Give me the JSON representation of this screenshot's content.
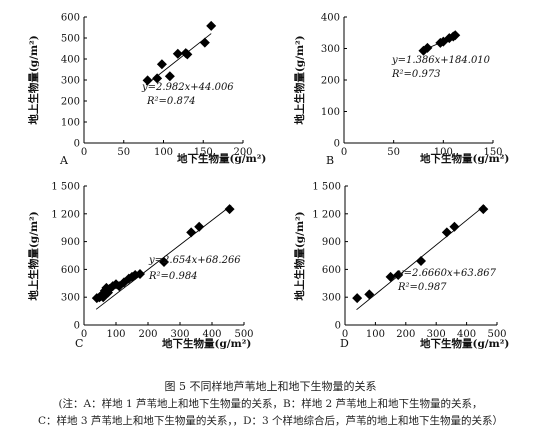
{
  "chart_data": [
    {
      "type": "scatter",
      "panel_label": "A",
      "xlabel": "地下生物量(g/m²)",
      "ylabel": "地上生物量(g/m²)",
      "xlim": [
        0,
        200
      ],
      "ylim": [
        0,
        600
      ],
      "xticks": [
        "0",
        "50",
        "100",
        "150",
        "200"
      ],
      "yticks": [
        "0",
        "100",
        "200",
        "300",
        "400",
        "500",
        "600"
      ],
      "x": [
        80,
        92,
        98,
        108,
        118,
        128,
        130,
        152,
        160
      ],
      "y": [
        298,
        308,
        375,
        318,
        425,
        428,
        422,
        478,
        558
      ],
      "trendline": {
        "slope": 2.982,
        "intercept": 44.006,
        "x_range": [
          78,
          160
        ]
      },
      "equation": "y=2.982x+44.006",
      "r2": "R²=0.874"
    },
    {
      "type": "scatter",
      "panel_label": "B",
      "xlabel": "地下生物量(g/m²)",
      "ylabel": "地上生物量(g/m²)",
      "xlim": [
        0,
        150
      ],
      "ylim": [
        0,
        400
      ],
      "xticks": [
        "0",
        "50",
        "100",
        "150"
      ],
      "yticks": [
        "0",
        "100",
        "200",
        "300",
        "400"
      ],
      "x": [
        80,
        84,
        97,
        100,
        106,
        110,
        112
      ],
      "y": [
        293,
        302,
        318,
        322,
        333,
        338,
        342
      ],
      "trendline": {
        "slope": 1.386,
        "intercept": 184.01,
        "x_range": [
          78,
          113
        ]
      },
      "equation": "y=1.386x+184.010",
      "r2": "R²=0.973"
    },
    {
      "type": "scatter",
      "panel_label": "C",
      "xlabel": "地下生物量(g/m²)",
      "ylabel": "地上生物量(g/m²)",
      "xlim": [
        0,
        500
      ],
      "ylim": [
        0,
        1500
      ],
      "xticks": [
        "0",
        "100",
        "200",
        "300",
        "400",
        "500"
      ],
      "yticks": [
        "0",
        "300",
        "600",
        "900",
        "1 200",
        "1 500"
      ],
      "x": [
        40,
        48,
        52,
        55,
        58,
        60,
        62,
        65,
        70,
        75,
        80,
        90,
        100,
        110,
        125,
        140,
        150,
        160,
        175,
        250,
        335,
        360,
        455
      ],
      "y": [
        290,
        300,
        310,
        320,
        330,
        300,
        340,
        370,
        400,
        350,
        390,
        420,
        440,
        420,
        460,
        500,
        520,
        540,
        550,
        680,
        1000,
        1060,
        1250
      ],
      "trendline": {
        "slope": 2.654,
        "intercept": 68.266,
        "x_range": [
          38,
          460
        ]
      },
      "equation": "y=2.654x+68.266",
      "r2": "R²=0.984"
    },
    {
      "type": "scatter",
      "panel_label": "D",
      "xlabel": "地下生物量(g/m²)",
      "ylabel": "地上生物量(g/m²)",
      "xlim": [
        0,
        500
      ],
      "ylim": [
        0,
        1500
      ],
      "xticks": [
        "0",
        "100",
        "200",
        "300",
        "400",
        "500"
      ],
      "yticks": [
        "0",
        "300",
        "600",
        "900",
        "1 200",
        "1 500"
      ],
      "x": [
        40,
        80,
        150,
        175,
        250,
        335,
        360,
        455
      ],
      "y": [
        290,
        330,
        520,
        540,
        690,
        1000,
        1060,
        1250
      ],
      "trendline": {
        "slope": 2.666,
        "intercept": 63.867,
        "x_range": [
          38,
          460
        ]
      },
      "equation": "y=2.6660x+63.867",
      "r2": "R²=0.987"
    }
  ],
  "caption": {
    "title": "图 5   不同样地芦苇地上和地下生物量的关系",
    "note_line1": "(注：A：样地 1 芦苇地上和地下生物量的关系，B：样地 2 芦苇地上和地下生物量的关系，",
    "note_line2": "C：样地 3 芦苇地上和地下生物量的关系，，D：3 个样地综合后，芦苇的地上和地下生物量的关系）"
  },
  "colors": {
    "marker": "#000000",
    "trendline": "#000000",
    "axis": "#000000",
    "text": "#111111"
  }
}
